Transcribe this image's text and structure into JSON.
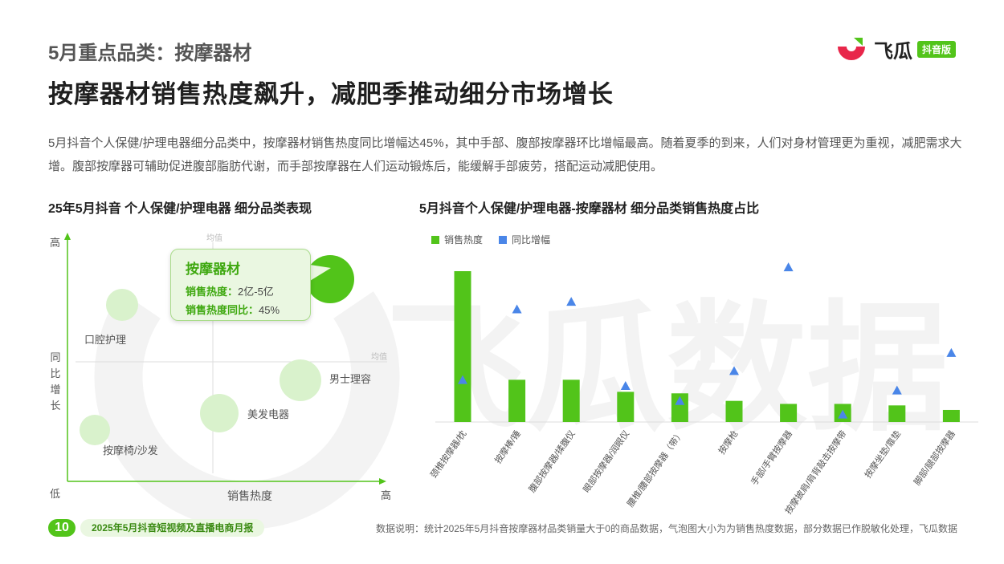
{
  "header": {
    "section": "5月重点品类：按摩器材",
    "headline": "按摩器材销售热度飙升，减肥季推动细分市场增长",
    "description": "5月抖音个人保健/护理电器细分品类中，按摩器材销售热度同比增幅达45%，其中手部、腹部按摩器环比增幅最高。随着夏季的到来，人们对身材管理更为重视，减肥需求大增。腹部按摩器可辅助促进腹部脂肪代谢，而手部按摩器在人们运动锻炼后，能缓解手部疲劳，搭配运动减肥使用。"
  },
  "logo": {
    "text": "飞瓜",
    "tag": "抖音版"
  },
  "watermark": "飞瓜数据",
  "colors": {
    "accent": "#52c41a",
    "bar": "#52c41a",
    "marker": "#4a86e8",
    "bubble": "#d9f2cc"
  },
  "chart_data": [
    {
      "type": "scatter",
      "title": "25年5月抖音 个人保健/护理电器 细分品类表现",
      "xlabel": "销售热度",
      "ylabel": "同比增长",
      "x_low": "低",
      "x_high": "高",
      "y_high": "高",
      "mean_label_x": "均值",
      "mean_label_y": "均值",
      "points": [
        {
          "name": "按摩器材",
          "highlight": true
        },
        {
          "name": "口腔护理"
        },
        {
          "name": "男士理容"
        },
        {
          "name": "美发电器"
        },
        {
          "name": "按摩椅/沙发"
        }
      ],
      "tooltip": {
        "title": "按摩器材",
        "heat_label": "销售热度：",
        "heat_value": "2亿-5亿",
        "yoy_label": "销售热度同比：",
        "yoy_value": "45%"
      }
    },
    {
      "type": "bar",
      "title": "5月抖音个人保健/护理电器-按摩器材 细分品类销售热度占比",
      "legend": [
        "销售热度",
        "同比增幅"
      ],
      "categories": [
        "颈椎按摩器/枕",
        "按摩棒/锤",
        "腹部按摩器/揉腹仪",
        "眼部按摩器/润眼仪",
        "腰椎/腰部按摩器（带）",
        "按摩枪",
        "手部/手臂按摩器",
        "按摩披肩/肩背敲击按摩带",
        "按摩坐垫/靠垫",
        "脚部/腿部按摩器"
      ],
      "series": [
        {
          "name": "销售热度",
          "values": [
            100,
            28,
            28,
            20,
            19,
            14,
            12,
            12,
            11,
            8
          ]
        },
        {
          "name": "同比增幅",
          "values": [
            28,
            75,
            80,
            24,
            14,
            34,
            103,
            5,
            21,
            46
          ]
        }
      ],
      "ylim": [
        0,
        110
      ]
    }
  ],
  "footer": {
    "page": "10",
    "label": "2025年5月抖音短视频及直播电商月报",
    "note": "数据说明：统计2025年5月抖音按摩器材品类销量大于0的商品数据，气泡图大小为为销售热度数据，部分数据已作脱敏化处理，飞瓜数据"
  }
}
